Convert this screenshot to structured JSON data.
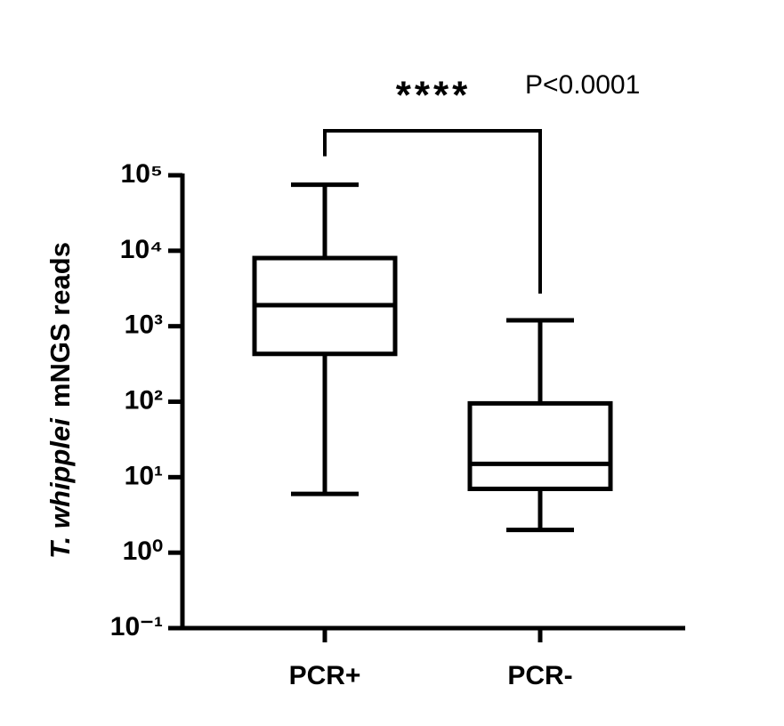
{
  "chart_data": {
    "type": "box",
    "ylabel": [
      "T. whipplei",
      "mNGS reads"
    ],
    "categories": [
      "PCR+",
      "PCR-"
    ],
    "boxes": [
      {
        "whislo": 6,
        "q1": 430,
        "med": 1900,
        "q3": 8000,
        "whishi": 75000
      },
      {
        "whislo": 2,
        "q1": 7,
        "med": 15,
        "q3": 95,
        "whishi": 1200
      }
    ],
    "color": "#000000",
    "log_scale": true,
    "ylim": [
      0.1,
      100000
    ],
    "yticks": [
      {
        "value": 0.1,
        "label": "10⁻¹"
      },
      {
        "value": 1,
        "label": "10⁰"
      },
      {
        "value": 10,
        "label": "10¹"
      },
      {
        "value": 100,
        "label": "10²"
      },
      {
        "value": 1000,
        "label": "10³"
      },
      {
        "value": 10000,
        "label": "10⁴"
      },
      {
        "value": 100000,
        "label": "10⁵"
      }
    ],
    "annotations": [
      "****",
      "P<0.0001"
    ]
  }
}
